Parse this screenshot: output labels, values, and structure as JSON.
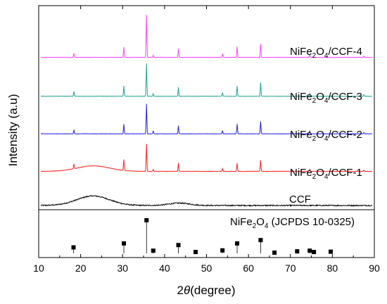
{
  "chart_data": {
    "type": "line",
    "xlabel": {
      "prefix": "2",
      "italic": "θ",
      "suffix": "(degree)"
    },
    "ylabel": "Intensity (a.u)",
    "xlim": [
      10,
      90
    ],
    "xticks": [
      10,
      20,
      30,
      40,
      50,
      60,
      70,
      80,
      90
    ],
    "xtick_labels": [
      "10",
      "20",
      "30",
      "40",
      "50",
      "60",
      "70",
      "80",
      "90"
    ],
    "series": [
      {
        "name": "CCF",
        "label_parts": [
          "CCF"
        ],
        "color": "#000000",
        "baseline": 0,
        "humps": [
          {
            "center": 23,
            "width": 5.5,
            "height": 14
          },
          {
            "center": 43.5,
            "width": 3.5,
            "height": 3.5
          }
        ],
        "peaks": []
      },
      {
        "name": "NiFe2O4/CCF-1",
        "label_parts": [
          "NiFe",
          "2",
          "O",
          "4",
          "/CCF-1"
        ],
        "color": "#ff2020",
        "baseline": 50,
        "humps": [
          {
            "center": 23,
            "width": 5.5,
            "height": 8
          }
        ],
        "peaks": [
          {
            "x": 18.4,
            "h": 7
          },
          {
            "x": 30.3,
            "h": 16
          },
          {
            "x": 35.7,
            "h": 40
          },
          {
            "x": 37.3,
            "h": 3
          },
          {
            "x": 43.3,
            "h": 12
          },
          {
            "x": 53.8,
            "h": 4
          },
          {
            "x": 57.3,
            "h": 12
          },
          {
            "x": 62.9,
            "h": 16
          },
          {
            "x": 74.6,
            "h": 3
          },
          {
            "x": 87.5,
            "h": 2
          }
        ]
      },
      {
        "name": "NiFe2O4/CCF-2",
        "label_parts": [
          "NiFe",
          "2",
          "O",
          "4",
          "/CCF-2"
        ],
        "color": "#2020e0",
        "baseline": 105,
        "humps": [],
        "peaks": [
          {
            "x": 18.4,
            "h": 6
          },
          {
            "x": 30.3,
            "h": 14
          },
          {
            "x": 35.7,
            "h": 44
          },
          {
            "x": 37.3,
            "h": 4
          },
          {
            "x": 43.3,
            "h": 12
          },
          {
            "x": 53.8,
            "h": 5
          },
          {
            "x": 57.3,
            "h": 14
          },
          {
            "x": 62.9,
            "h": 18
          },
          {
            "x": 74.6,
            "h": 4
          },
          {
            "x": 87.5,
            "h": 2
          }
        ]
      },
      {
        "name": "NiFe2O4/CCF-3",
        "label_parts": [
          "NiFe",
          "2",
          "O",
          "4",
          "/CCF-3"
        ],
        "color": "#20a090",
        "baseline": 160,
        "humps": [],
        "peaks": [
          {
            "x": 18.4,
            "h": 7
          },
          {
            "x": 30.3,
            "h": 15
          },
          {
            "x": 35.7,
            "h": 48
          },
          {
            "x": 37.3,
            "h": 4
          },
          {
            "x": 43.3,
            "h": 13
          },
          {
            "x": 53.8,
            "h": 5
          },
          {
            "x": 57.3,
            "h": 15
          },
          {
            "x": 62.9,
            "h": 20
          },
          {
            "x": 74.6,
            "h": 4
          },
          {
            "x": 87.5,
            "h": 2
          }
        ]
      },
      {
        "name": "NiFe2O4/CCF-4",
        "label_parts": [
          "NiFe",
          "2",
          "O",
          "4",
          "/CCF-4"
        ],
        "color": "#ff40ff",
        "baseline": 217,
        "humps": [],
        "peaks": [
          {
            "x": 18.4,
            "h": 6
          },
          {
            "x": 30.3,
            "h": 15
          },
          {
            "x": 35.7,
            "h": 62
          },
          {
            "x": 37.3,
            "h": 3
          },
          {
            "x": 43.3,
            "h": 13
          },
          {
            "x": 53.8,
            "h": 5
          },
          {
            "x": 57.3,
            "h": 16
          },
          {
            "x": 62.9,
            "h": 20
          },
          {
            "x": 74.6,
            "h": 4
          },
          {
            "x": 87.5,
            "h": 2
          }
        ]
      }
    ],
    "reference": {
      "name": "NiFe2O4 (JCPDS 10-0325)",
      "label_parts": [
        "NiFe",
        "2",
        "O",
        "4",
        " (JCPDS 10-0325)"
      ],
      "color": "#000000",
      "ymax": 100,
      "lines": [
        {
          "x": 18.3,
          "i": 18
        },
        {
          "x": 30.3,
          "i": 30
        },
        {
          "x": 35.7,
          "i": 100
        },
        {
          "x": 37.3,
          "i": 8
        },
        {
          "x": 43.3,
          "i": 25
        },
        {
          "x": 47.4,
          "i": 4
        },
        {
          "x": 53.8,
          "i": 9
        },
        {
          "x": 57.3,
          "i": 30
        },
        {
          "x": 62.9,
          "i": 40
        },
        {
          "x": 66.2,
          "i": 2
        },
        {
          "x": 71.6,
          "i": 6
        },
        {
          "x": 74.6,
          "i": 8
        },
        {
          "x": 75.6,
          "i": 4
        },
        {
          "x": 79.6,
          "i": 5
        }
      ]
    }
  }
}
